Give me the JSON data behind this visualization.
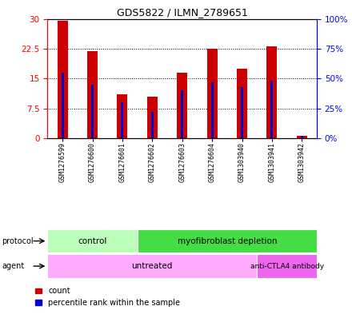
{
  "title": "GDS5822 / ILMN_2789651",
  "samples": [
    "GSM1276599",
    "GSM1276600",
    "GSM1276601",
    "GSM1276602",
    "GSM1276603",
    "GSM1276604",
    "GSM1303940",
    "GSM1303941",
    "GSM1303942"
  ],
  "counts": [
    29.5,
    21.8,
    11.0,
    10.5,
    16.5,
    22.5,
    17.5,
    23.0,
    0.6
  ],
  "percentiles": [
    55,
    45,
    30,
    22,
    40,
    47,
    43,
    48,
    2
  ],
  "ylim_left": [
    0,
    30
  ],
  "ylim_right": [
    0,
    100
  ],
  "yticks_left": [
    0,
    7.5,
    15,
    22.5,
    30
  ],
  "yticks_right": [
    0,
    25,
    50,
    75,
    100
  ],
  "ytick_labels_left": [
    "0",
    "7.5",
    "15",
    "22.5",
    "30"
  ],
  "ytick_labels_right": [
    "0%",
    "25%",
    "50%",
    "75%",
    "100%"
  ],
  "bar_color": "#cc0000",
  "blue_color": "#0000cc",
  "bar_width": 0.35,
  "blue_bar_width": 0.08,
  "protocol_control_n": 3,
  "protocol_deplete_n": 6,
  "agent_untreated_n": 7,
  "agent_antibody_n": 2,
  "protocol_light_color": "#bbffbb",
  "protocol_dark_color": "#44dd44",
  "agent_light_color": "#ffaaff",
  "agent_dark_color": "#ee66ee",
  "grid_color": "black",
  "bg_color": "#ffffff",
  "legend_count_label": "count",
  "legend_pct_label": "percentile rank within the sample"
}
